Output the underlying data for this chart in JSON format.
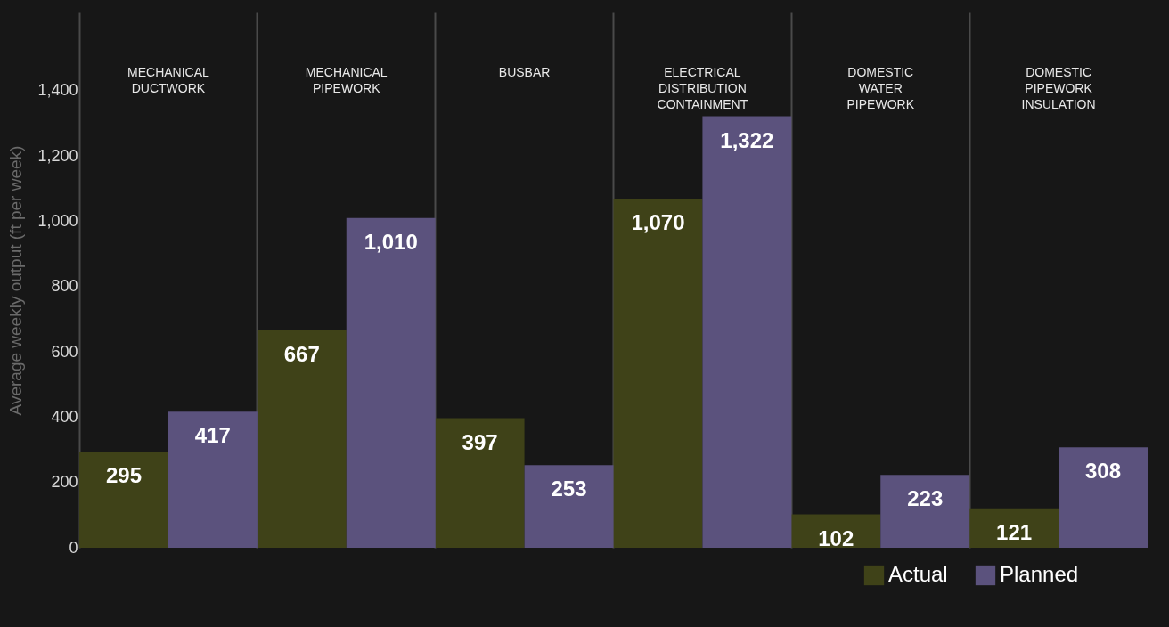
{
  "chart_data": {
    "type": "bar",
    "ylabel": "Average weekly output (ft per week)",
    "categories": [
      "MECHANICAL DUCTWORK",
      "MECHANICAL PIPEWORK",
      "BUSBAR",
      "ELECTRICAL DISTRIBUTION CONTAINMENT",
      "DOMESTIC WATER PIPEWORK",
      "DOMESTIC PIPEWORK INSULATION"
    ],
    "series": [
      {
        "name": "Actual",
        "color": "#3f4218",
        "values": [
          295,
          667,
          397,
          1070,
          102,
          121
        ],
        "value_labels": [
          "295",
          "667",
          "397",
          "1,070",
          "102",
          "121"
        ]
      },
      {
        "name": "Planned",
        "color": "#5b527d",
        "values": [
          417,
          1010,
          253,
          1322,
          223,
          308
        ],
        "value_labels": [
          "417",
          "1,010",
          "253",
          "1,322",
          "223",
          "308"
        ]
      }
    ],
    "ylim": [
      0,
      1640
    ],
    "yticks": [
      0,
      200,
      400,
      600,
      800,
      {
        "value": 1000,
        "label": "1,000"
      },
      {
        "value": 1200,
        "label": "1,200"
      },
      {
        "value": 1400,
        "label": "1,400"
      }
    ],
    "grid": "x",
    "legend": "bottom right"
  }
}
